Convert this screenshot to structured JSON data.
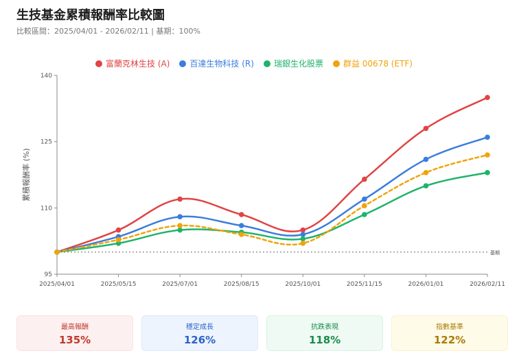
{
  "header": {
    "title": "生技基金累積報酬率比較圖",
    "subtitle": "比較區間：2025/04/01 - 2026/02/11 | 基期：100%"
  },
  "chart_data": {
    "type": "line",
    "title": "生技基金累積報酬率比較圖",
    "xlabel": "",
    "ylabel": "累積報酬率 (%)",
    "ylim": [
      95,
      140
    ],
    "yticks": [
      95,
      110,
      125,
      140
    ],
    "categories": [
      "2025/04/01",
      "2025/05/15",
      "2025/07/01",
      "2025/08/15",
      "2025/10/01",
      "2025/11/15",
      "2026/01/01",
      "2026/02/11"
    ],
    "baseline": {
      "value": 100,
      "label": "基期"
    },
    "grid": false,
    "legend_position": "top-center",
    "series": [
      {
        "name": "富蘭克林生技 (A)",
        "color": "#e04444",
        "dashed": false,
        "values": [
          100,
          105,
          112,
          108.5,
          105,
          116.5,
          128,
          135
        ]
      },
      {
        "name": "百達生物科技 (R)",
        "color": "#3b7ddd",
        "dashed": false,
        "values": [
          100,
          103.5,
          108,
          106,
          104,
          112,
          121,
          126
        ]
      },
      {
        "name": "瑞銀生化股票",
        "color": "#1fb36b",
        "dashed": false,
        "values": [
          100,
          102,
          105,
          104.5,
          103,
          108.5,
          115,
          118
        ]
      },
      {
        "name": "群益 00678 (ETF)",
        "color": "#f0a30a",
        "dashed": true,
        "values": [
          100,
          102.8,
          106,
          104,
          102,
          110.5,
          118,
          122
        ]
      }
    ]
  },
  "cards": [
    {
      "label": "最高報酬",
      "value": "135%"
    },
    {
      "label": "穩定成長",
      "value": "126%"
    },
    {
      "label": "抗跌表現",
      "value": "118%"
    },
    {
      "label": "指數基準",
      "value": "122%"
    }
  ]
}
